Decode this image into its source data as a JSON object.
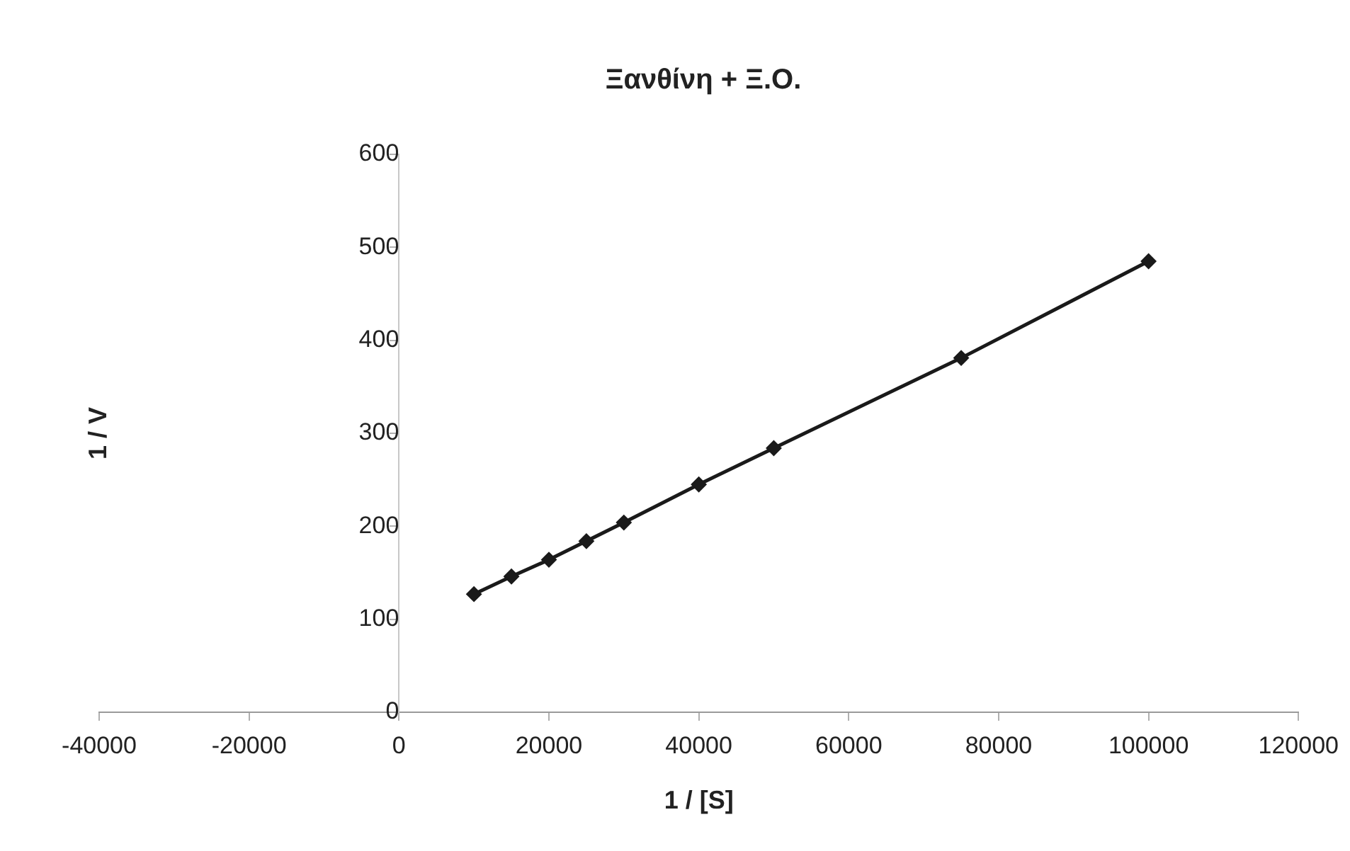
{
  "chart_data": {
    "type": "line",
    "title": "Ξανθίνη + Ξ.Ο.",
    "xlabel": "1 / [S]",
    "ylabel": "1 / V",
    "x": [
      10000,
      15000,
      20000,
      25000,
      30000,
      40000,
      50000,
      75000,
      100000
    ],
    "series": [
      {
        "color": "#1a1a1a",
        "values": [
          127,
          146,
          164,
          184,
          204,
          245,
          284,
          381,
          485
        ]
      }
    ],
    "xlim": [
      -40000,
      120000
    ],
    "xticks": [
      -40000,
      -20000,
      0,
      20000,
      40000,
      60000,
      80000,
      100000,
      120000
    ],
    "ylim": [
      0,
      600
    ],
    "yticks": [
      0,
      100,
      200,
      300,
      400,
      500,
      600
    ],
    "marker": "diamond",
    "line_style": "solid",
    "legend": false,
    "grid": false
  }
}
